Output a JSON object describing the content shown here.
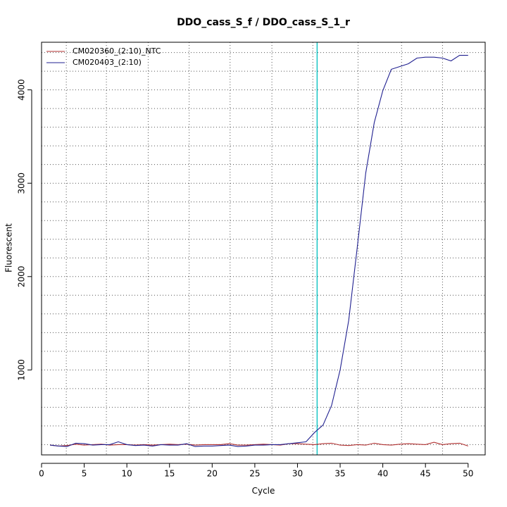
{
  "chart_data": {
    "type": "line",
    "title": "DDO_cass_S_f / DDO_cass_S_1_r",
    "xlabel": "Cycle",
    "ylabel": "Fluorescent",
    "xlim": [
      0,
      52
    ],
    "ylim": [
      90,
      4510
    ],
    "x_ticks": [
      0,
      5,
      10,
      15,
      20,
      25,
      30,
      35,
      40,
      45,
      50
    ],
    "y_ticks": [
      1000,
      2000,
      3000,
      4000
    ],
    "x_grid": [
      2.9,
      7.6,
      12.5,
      17.3,
      22.1,
      27.0,
      31.8,
      37.1,
      42.2,
      47.0
    ],
    "y_grid": [
      200,
      400,
      600,
      800,
      1000,
      1200,
      1400,
      1600,
      1800,
      2000,
      2200,
      2400,
      2600,
      2800,
      3000,
      3200,
      3400,
      3600,
      3800,
      4000,
      4200,
      4400
    ],
    "threshold_x": 32.3,
    "grid": true,
    "legend_position": "top-left",
    "series": [
      {
        "name": "CM020360_(2:10)_NTC",
        "color": "#b03030",
        "x": [
          1,
          2,
          3,
          4,
          5,
          6,
          7,
          8,
          9,
          10,
          11,
          12,
          13,
          14,
          15,
          16,
          17,
          18,
          19,
          20,
          21,
          22,
          23,
          24,
          25,
          26,
          27,
          28,
          29,
          30,
          31,
          32,
          33,
          34,
          35,
          36,
          37,
          38,
          39,
          40,
          41,
          42,
          43,
          44,
          45,
          46,
          47,
          48,
          49,
          50
        ],
        "values": [
          195,
          185,
          190,
          205,
          195,
          200,
          205,
          195,
          200,
          200,
          195,
          200,
          195,
          200,
          205,
          200,
          205,
          195,
          200,
          200,
          200,
          210,
          195,
          195,
          200,
          205,
          200,
          195,
          210,
          210,
          205,
          200,
          210,
          215,
          195,
          190,
          200,
          195,
          215,
          200,
          195,
          205,
          210,
          205,
          200,
          225,
          200,
          210,
          215,
          185
        ]
      },
      {
        "name": "CM020403_(2:10)",
        "color": "#202090",
        "x": [
          1,
          2,
          3,
          4,
          5,
          6,
          7,
          8,
          9,
          10,
          11,
          12,
          13,
          14,
          15,
          16,
          17,
          18,
          19,
          20,
          21,
          22,
          23,
          24,
          25,
          26,
          27,
          28,
          29,
          30,
          31,
          32,
          33,
          34,
          35,
          36,
          37,
          38,
          39,
          40,
          41,
          42,
          43,
          44,
          45,
          46,
          47,
          48,
          49,
          50
        ],
        "values": [
          195,
          185,
          180,
          215,
          210,
          195,
          200,
          200,
          230,
          200,
          190,
          195,
          185,
          200,
          195,
          195,
          210,
          180,
          185,
          185,
          190,
          195,
          180,
          185,
          195,
          195,
          200,
          200,
          210,
          220,
          230,
          330,
          410,
          620,
          1000,
          1530,
          2310,
          3110,
          3650,
          3990,
          4220,
          4250,
          4280,
          4340,
          4350,
          4350,
          4340,
          4310,
          4370,
          4370
        ]
      }
    ]
  }
}
